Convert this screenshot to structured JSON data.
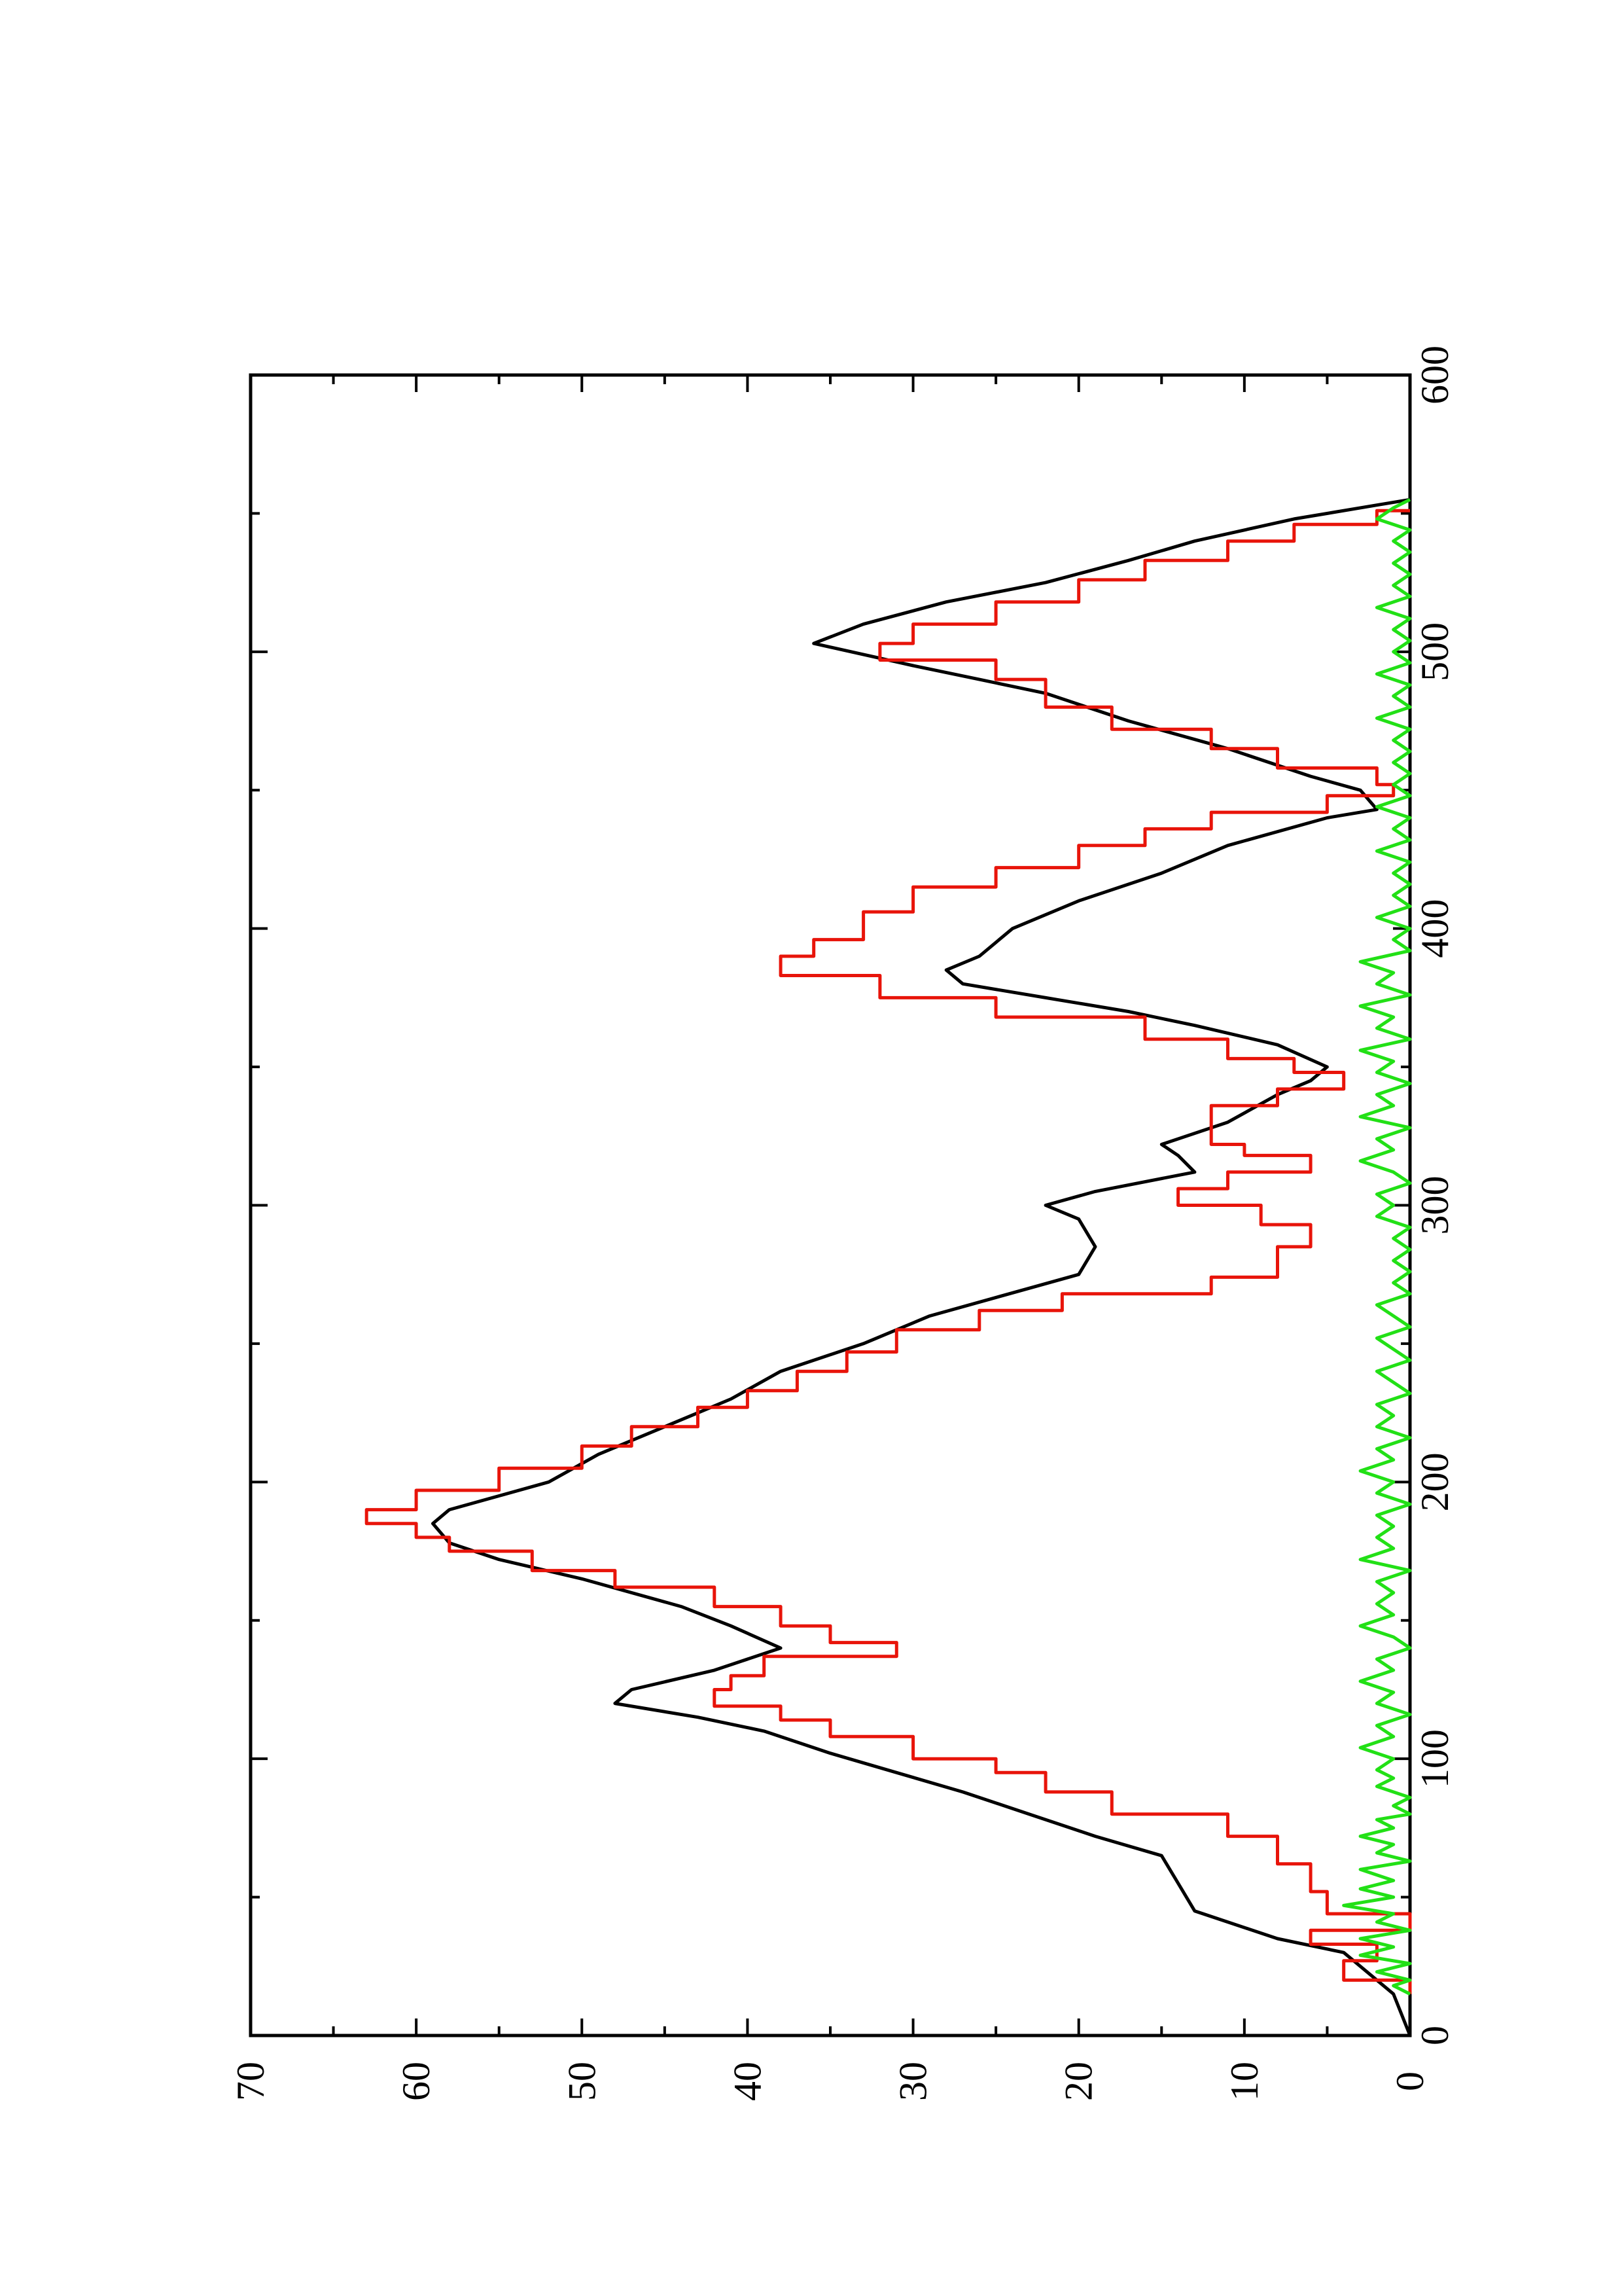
{
  "chart_data": {
    "type": "line",
    "orientation": "rotated-90-clockwise",
    "title": "",
    "xlabel": "",
    "ylabel": "",
    "xlim": [
      0,
      600
    ],
    "ylim": [
      0,
      70
    ],
    "x_ticks": [
      0,
      100,
      200,
      300,
      400,
      500,
      600
    ],
    "x_minor_ticks": [
      50,
      150,
      250,
      350,
      450,
      550
    ],
    "y_ticks": [
      0,
      10,
      20,
      30,
      40,
      50,
      60,
      70
    ],
    "y_minor_ticks": [
      5,
      15,
      25,
      35,
      45,
      55,
      65
    ],
    "grid": false,
    "legend": "none",
    "series": [
      {
        "color": "#000000",
        "style": "smooth",
        "points": [
          [
            0,
            0
          ],
          [
            15,
            1
          ],
          [
            25,
            3
          ],
          [
            30,
            4
          ],
          [
            35,
            8
          ],
          [
            45,
            13
          ],
          [
            55,
            14
          ],
          [
            65,
            15
          ],
          [
            72,
            19
          ],
          [
            80,
            23
          ],
          [
            88,
            27
          ],
          [
            95,
            31
          ],
          [
            102,
            35
          ],
          [
            110,
            39
          ],
          [
            115,
            43
          ],
          [
            120,
            48
          ],
          [
            125,
            47
          ],
          [
            132,
            42
          ],
          [
            140,
            38
          ],
          [
            148,
            41
          ],
          [
            155,
            44
          ],
          [
            165,
            50
          ],
          [
            172,
            55
          ],
          [
            178,
            58
          ],
          [
            185,
            59
          ],
          [
            190,
            58
          ],
          [
            195,
            55
          ],
          [
            200,
            52
          ],
          [
            210,
            49
          ],
          [
            220,
            45
          ],
          [
            230,
            41
          ],
          [
            240,
            38
          ],
          [
            250,
            33
          ],
          [
            260,
            29
          ],
          [
            270,
            23
          ],
          [
            275,
            20
          ],
          [
            285,
            19
          ],
          [
            295,
            20
          ],
          [
            300,
            22
          ],
          [
            305,
            19
          ],
          [
            312,
            13
          ],
          [
            318,
            14
          ],
          [
            322,
            15
          ],
          [
            330,
            11
          ],
          [
            340,
            8
          ],
          [
            345,
            6
          ],
          [
            350,
            5
          ],
          [
            358,
            8
          ],
          [
            365,
            13
          ],
          [
            370,
            17
          ],
          [
            375,
            22
          ],
          [
            380,
            27
          ],
          [
            385,
            28
          ],
          [
            390,
            26
          ],
          [
            400,
            24
          ],
          [
            410,
            20
          ],
          [
            420,
            15
          ],
          [
            430,
            11
          ],
          [
            440,
            5
          ],
          [
            443,
            2
          ],
          [
            450,
            3
          ],
          [
            455,
            6
          ],
          [
            465,
            11
          ],
          [
            475,
            17
          ],
          [
            485,
            22
          ],
          [
            490,
            26
          ],
          [
            495,
            30
          ],
          [
            503,
            36
          ],
          [
            510,
            33
          ],
          [
            518,
            28
          ],
          [
            525,
            22
          ],
          [
            533,
            17
          ],
          [
            540,
            13
          ],
          [
            548,
            7
          ],
          [
            553,
            2
          ],
          [
            555,
            0
          ]
        ]
      },
      {
        "color": "#e8140a",
        "style": "step",
        "points": [
          [
            15,
            0
          ],
          [
            20,
            4
          ],
          [
            27,
            2
          ],
          [
            33,
            6
          ],
          [
            38,
            0
          ],
          [
            44,
            5
          ],
          [
            52,
            6
          ],
          [
            62,
            8
          ],
          [
            72,
            11
          ],
          [
            80,
            18
          ],
          [
            88,
            22
          ],
          [
            95,
            25
          ],
          [
            100,
            30
          ],
          [
            108,
            35
          ],
          [
            114,
            38
          ],
          [
            119,
            42
          ],
          [
            125,
            41
          ],
          [
            130,
            39
          ],
          [
            137,
            31
          ],
          [
            142,
            35
          ],
          [
            148,
            38
          ],
          [
            155,
            42
          ],
          [
            162,
            48
          ],
          [
            168,
            53
          ],
          [
            175,
            58
          ],
          [
            180,
            60
          ],
          [
            185,
            63
          ],
          [
            190,
            60
          ],
          [
            197,
            55
          ],
          [
            205,
            50
          ],
          [
            213,
            47
          ],
          [
            220,
            43
          ],
          [
            227,
            40
          ],
          [
            233,
            37
          ],
          [
            240,
            34
          ],
          [
            247,
            31
          ],
          [
            255,
            26
          ],
          [
            262,
            21
          ],
          [
            268,
            12
          ],
          [
            274,
            8
          ],
          [
            285,
            6
          ],
          [
            293,
            9
          ],
          [
            300,
            14
          ],
          [
            306,
            11
          ],
          [
            312,
            6
          ],
          [
            318,
            10
          ],
          [
            322,
            12
          ],
          [
            330,
            12
          ],
          [
            336,
            8
          ],
          [
            342,
            4
          ],
          [
            348,
            7
          ],
          [
            353,
            11
          ],
          [
            360,
            16
          ],
          [
            368,
            25
          ],
          [
            375,
            32
          ],
          [
            383,
            38
          ],
          [
            390,
            36
          ],
          [
            396,
            33
          ],
          [
            406,
            30
          ],
          [
            415,
            25
          ],
          [
            422,
            20
          ],
          [
            430,
            16
          ],
          [
            436,
            12
          ],
          [
            442,
            5
          ],
          [
            448,
            1
          ],
          [
            452,
            2
          ],
          [
            458,
            8
          ],
          [
            465,
            12
          ],
          [
            472,
            18
          ],
          [
            480,
            22
          ],
          [
            490,
            25
          ],
          [
            497,
            32
          ],
          [
            503,
            30
          ],
          [
            510,
            25
          ],
          [
            518,
            20
          ],
          [
            526,
            16
          ],
          [
            533,
            11
          ],
          [
            540,
            7
          ],
          [
            546,
            2
          ],
          [
            551,
            0
          ]
        ]
      },
      {
        "color": "#22e016",
        "style": "noisy",
        "points": [
          [
            15,
            0
          ],
          [
            18,
            1
          ],
          [
            20,
            0
          ],
          [
            23,
            2
          ],
          [
            26,
            0
          ],
          [
            29,
            3
          ],
          [
            32,
            1
          ],
          [
            35,
            3
          ],
          [
            38,
            0
          ],
          [
            41,
            2
          ],
          [
            44,
            1
          ],
          [
            47,
            4
          ],
          [
            50,
            1
          ],
          [
            53,
            3
          ],
          [
            56,
            1
          ],
          [
            60,
            3
          ],
          [
            63,
            0
          ],
          [
            66,
            2
          ],
          [
            69,
            1
          ],
          [
            72,
            3
          ],
          [
            75,
            1
          ],
          [
            78,
            2
          ],
          [
            80,
            0
          ],
          [
            83,
            1
          ],
          [
            86,
            0
          ],
          [
            90,
            2
          ],
          [
            93,
            1
          ],
          [
            96,
            2
          ],
          [
            100,
            1
          ],
          [
            104,
            3
          ],
          [
            108,
            1
          ],
          [
            112,
            2
          ],
          [
            116,
            0
          ],
          [
            120,
            2
          ],
          [
            124,
            1
          ],
          [
            128,
            3
          ],
          [
            132,
            1
          ],
          [
            136,
            2
          ],
          [
            140,
            0
          ],
          [
            144,
            1
          ],
          [
            148,
            3
          ],
          [
            152,
            1
          ],
          [
            156,
            2
          ],
          [
            160,
            1
          ],
          [
            164,
            2
          ],
          [
            168,
            0
          ],
          [
            172,
            3
          ],
          [
            176,
            1
          ],
          [
            180,
            2
          ],
          [
            184,
            1
          ],
          [
            188,
            2
          ],
          [
            192,
            0
          ],
          [
            196,
            2
          ],
          [
            200,
            1
          ],
          [
            204,
            3
          ],
          [
            208,
            1
          ],
          [
            212,
            2
          ],
          [
            216,
            0
          ],
          [
            220,
            2
          ],
          [
            224,
            1
          ],
          [
            228,
            2
          ],
          [
            232,
            0
          ],
          [
            236,
            1
          ],
          [
            240,
            2
          ],
          [
            244,
            0
          ],
          [
            248,
            1
          ],
          [
            252,
            2
          ],
          [
            256,
            0
          ],
          [
            260,
            1
          ],
          [
            264,
            2
          ],
          [
            268,
            0
          ],
          [
            272,
            1
          ],
          [
            276,
            0
          ],
          [
            280,
            1
          ],
          [
            284,
            0
          ],
          [
            288,
            1
          ],
          [
            292,
            0
          ],
          [
            296,
            2
          ],
          [
            300,
            1
          ],
          [
            304,
            2
          ],
          [
            308,
            0
          ],
          [
            312,
            1
          ],
          [
            316,
            3
          ],
          [
            320,
            1
          ],
          [
            324,
            2
          ],
          [
            328,
            0
          ],
          [
            332,
            3
          ],
          [
            336,
            1
          ],
          [
            340,
            2
          ],
          [
            344,
            0
          ],
          [
            348,
            2
          ],
          [
            352,
            1
          ],
          [
            356,
            3
          ],
          [
            360,
            0
          ],
          [
            364,
            2
          ],
          [
            368,
            1
          ],
          [
            372,
            3
          ],
          [
            376,
            0
          ],
          [
            380,
            2
          ],
          [
            384,
            1
          ],
          [
            388,
            3
          ],
          [
            392,
            0
          ],
          [
            396,
            1
          ],
          [
            400,
            0
          ],
          [
            404,
            2
          ],
          [
            408,
            0
          ],
          [
            412,
            1
          ],
          [
            416,
            0
          ],
          [
            420,
            1
          ],
          [
            424,
            0
          ],
          [
            428,
            2
          ],
          [
            432,
            0
          ],
          [
            436,
            1
          ],
          [
            440,
            0
          ],
          [
            444,
            2
          ],
          [
            448,
            0
          ],
          [
            452,
            1
          ],
          [
            456,
            0
          ],
          [
            460,
            1
          ],
          [
            464,
            0
          ],
          [
            468,
            1
          ],
          [
            472,
            0
          ],
          [
            476,
            2
          ],
          [
            480,
            0
          ],
          [
            484,
            1
          ],
          [
            488,
            0
          ],
          [
            492,
            2
          ],
          [
            496,
            0
          ],
          [
            500,
            1
          ],
          [
            504,
            0
          ],
          [
            508,
            1
          ],
          [
            512,
            0
          ],
          [
            516,
            2
          ],
          [
            520,
            0
          ],
          [
            524,
            1
          ],
          [
            528,
            0
          ],
          [
            532,
            1
          ],
          [
            536,
            0
          ],
          [
            540,
            1
          ],
          [
            544,
            0
          ],
          [
            548,
            2
          ],
          [
            552,
            1
          ],
          [
            555,
            0
          ]
        ]
      }
    ]
  }
}
